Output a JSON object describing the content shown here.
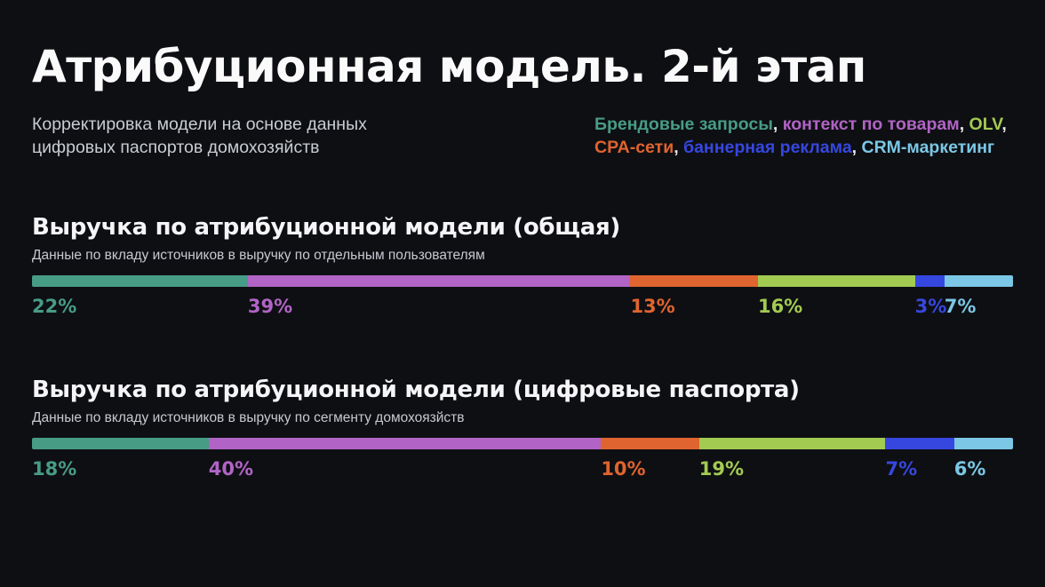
{
  "slide": {
    "title": "Атрибуционная модель. 2-й этап",
    "subtitle": {
      "line1": "Корректировка модели на основе данных",
      "line2": "цифровых паспортов домохозяйств"
    },
    "background_color": "#0e0f13"
  },
  "legend": {
    "lines": [
      {
        "items": [
          {
            "label": "Брендовые запросы",
            "color": "#479C86"
          },
          {
            "label": "контекст по товарам",
            "color": "#B164C5"
          },
          {
            "label": "OLV",
            "color": "#A3CB52"
          }
        ]
      },
      {
        "items": [
          {
            "label": "CPA-сети",
            "color": "#E0642F"
          },
          {
            "label": "баннерная реклама",
            "color": "#3647E0"
          },
          {
            "label": "CRM-маркетинг",
            "color": "#7BC7E5"
          }
        ]
      }
    ],
    "separator": ", ",
    "separator_color": "#e6e7ea"
  },
  "chart_data": [
    {
      "type": "bar",
      "variant": "horizontal-stacked-percent",
      "title": "Выручка по атрибуционной модели (общая)",
      "subtitle": "Данные по вкладу источников в выручку по отдельным пользователям",
      "unit": "%",
      "xlim": [
        0,
        100
      ],
      "segments": [
        {
          "name": "Брендовые запросы",
          "value": 22,
          "label": "22%",
          "color": "#479C86"
        },
        {
          "name": "контекст по товарам",
          "value": 39,
          "label": "39%",
          "color": "#B164C5"
        },
        {
          "name": "CPA-сети",
          "value": 13,
          "label": "13%",
          "color": "#E0642F"
        },
        {
          "name": "OLV",
          "value": 16,
          "label": "16%",
          "color": "#A3CB52"
        },
        {
          "name": "баннерная реклама",
          "value": 3,
          "label": "3%",
          "color": "#3647E0"
        },
        {
          "name": "CRM-маркетинг",
          "value": 7,
          "label": "7%",
          "color": "#7BC7E5"
        }
      ]
    },
    {
      "type": "bar",
      "variant": "horizontal-stacked-percent",
      "title": "Выручка по атрибуционной модели (цифровые паспорта)",
      "subtitle": "Данные по вкладу источников в выручку по сегменту домохоязйств",
      "unit": "%",
      "xlim": [
        0,
        100
      ],
      "segments": [
        {
          "name": "Брендовые запросы",
          "value": 18,
          "label": "18%",
          "color": "#479C86"
        },
        {
          "name": "контекст по товарам",
          "value": 40,
          "label": "40%",
          "color": "#B164C5"
        },
        {
          "name": "CPA-сети",
          "value": 10,
          "label": "10%",
          "color": "#E0642F"
        },
        {
          "name": "OLV",
          "value": 19,
          "label": "19%",
          "color": "#A3CB52"
        },
        {
          "name": "баннерная реклама",
          "value": 7,
          "label": "7%",
          "color": "#3647E0"
        },
        {
          "name": "CRM-маркетинг",
          "value": 6,
          "label": "6%",
          "color": "#7BC7E5"
        }
      ]
    }
  ]
}
